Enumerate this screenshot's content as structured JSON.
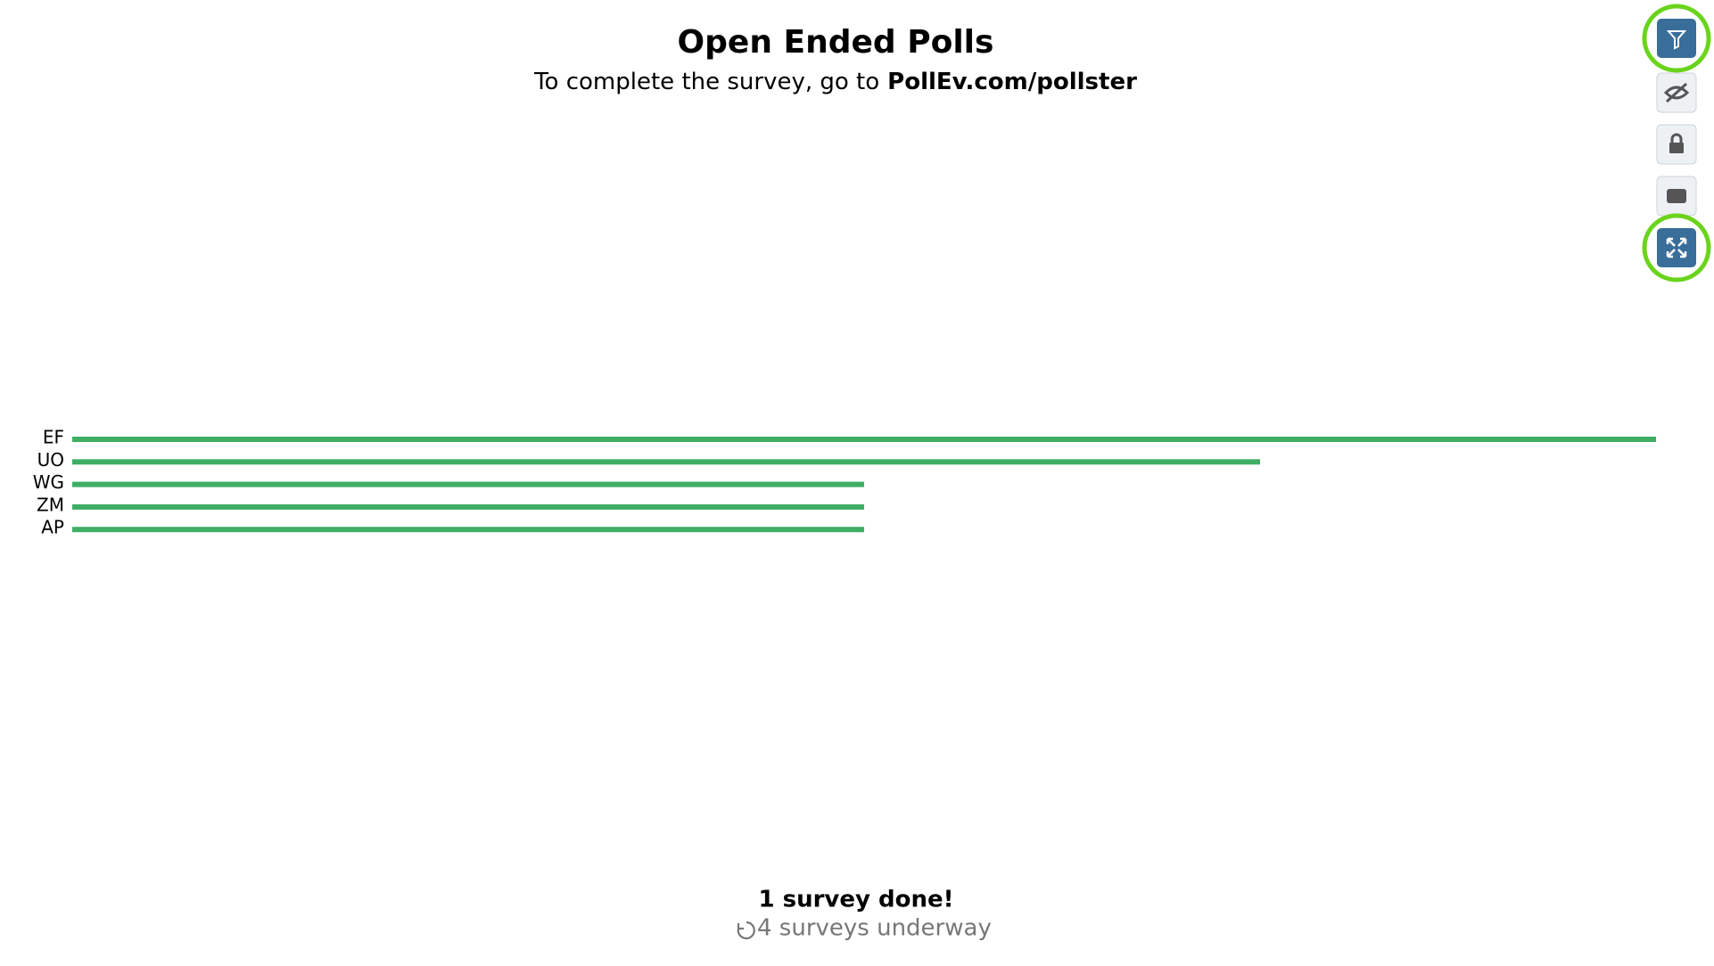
{
  "header": {
    "title": "Open Ended Polls",
    "subtitle_prefix": "To complete the survey, go to",
    "subtitle_link": "PollEv.com/pollster"
  },
  "chart_data": {
    "type": "bar",
    "categories": [
      "EF",
      "UO",
      "WG",
      "ZM",
      "AP"
    ],
    "values": [
      4,
      3,
      2,
      2,
      2
    ],
    "color": "#3fae64"
  },
  "footer": {
    "done": "1 survey done!",
    "underway": "4 surveys underway"
  }
}
